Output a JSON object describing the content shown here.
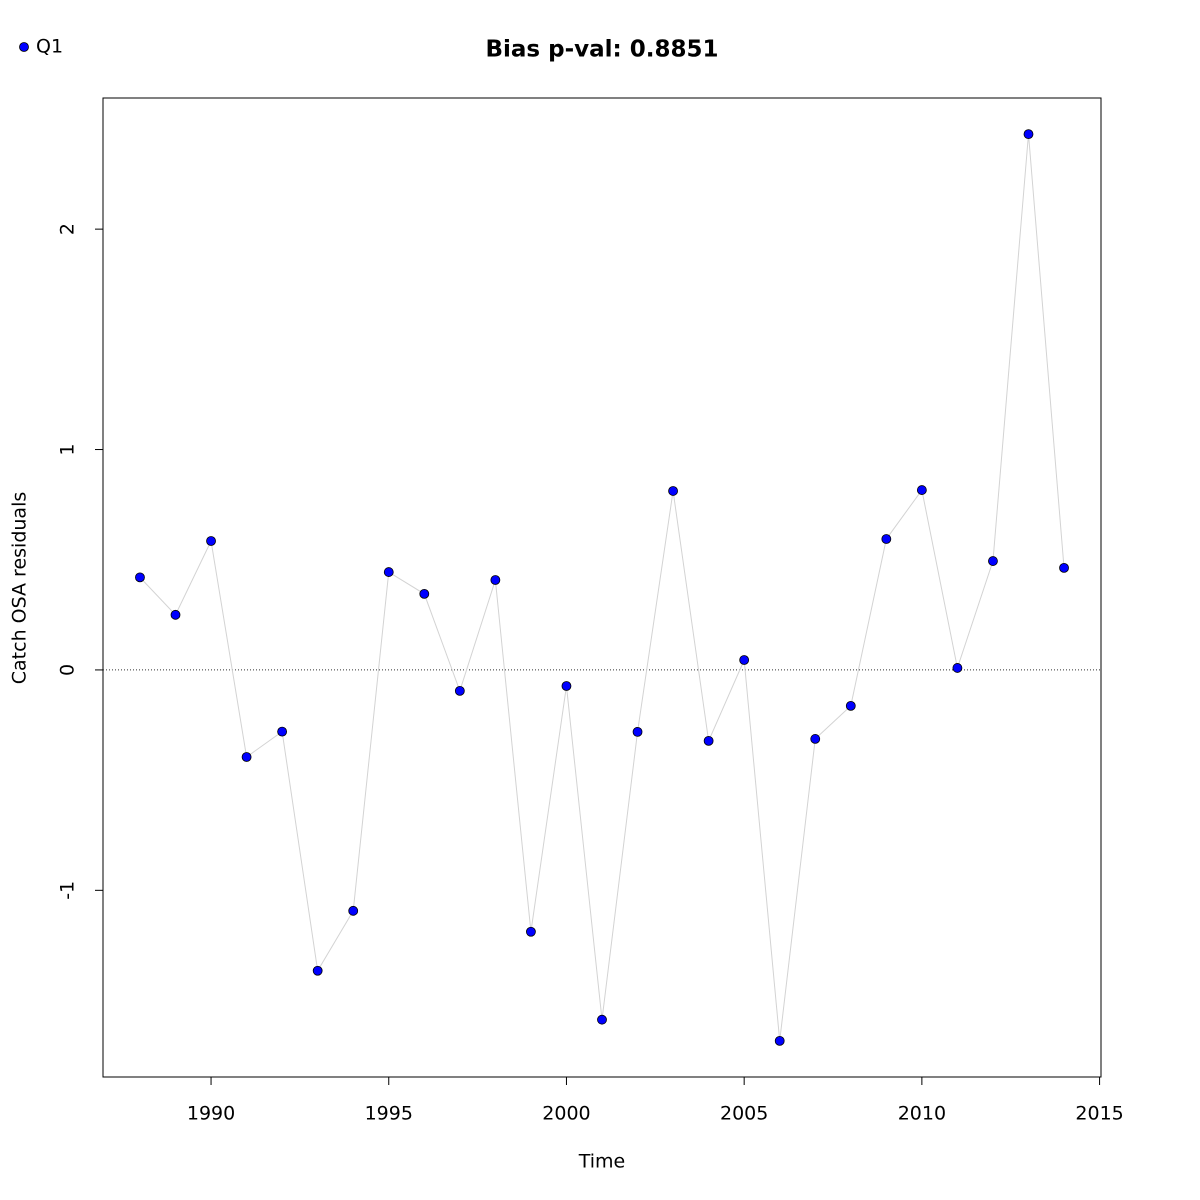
{
  "chart_data": {
    "type": "line",
    "title": "Bias p-val: 0.8851",
    "title_color": "#228b22",
    "x_label": "Time",
    "y_label": "Catch OSA residuals",
    "x": [
      1988,
      1989,
      1990,
      1991,
      1992,
      1993,
      1994,
      1995,
      1996,
      1997,
      1998,
      1999,
      2000,
      2001,
      2002,
      2003,
      2004,
      2005,
      2006,
      2007,
      2008,
      2009,
      2010,
      2011,
      2012,
      2013,
      2014
    ],
    "series": [
      {
        "name": "Q1",
        "color": "#0000ff",
        "line_color": "#d3d3d3",
        "values": [
          0.42,
          0.25,
          0.585,
          -0.395,
          -0.28,
          -1.365,
          -1.093,
          0.444,
          0.345,
          -0.095,
          0.408,
          -1.188,
          -0.073,
          -1.587,
          -0.281,
          0.812,
          -0.322,
          0.045,
          -1.683,
          -0.313,
          -0.163,
          0.594,
          0.816,
          0.009,
          0.494,
          2.431,
          0.463
        ]
      }
    ],
    "xlim": [
      1986.96,
      2015.04
    ],
    "ylim": [
      -1.847,
      2.595
    ],
    "xticks": [
      1990,
      1995,
      2000,
      2005,
      2010,
      2015
    ],
    "yticks": [
      -1,
      0,
      1,
      2
    ],
    "hline": 0,
    "legend": "top-left"
  }
}
